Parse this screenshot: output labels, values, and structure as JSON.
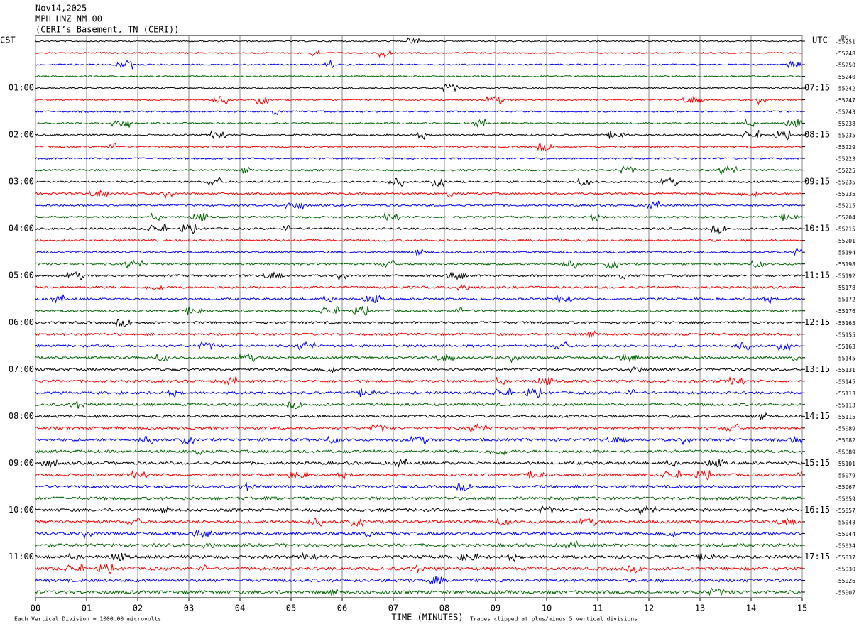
{
  "chart_data": {
    "type": "helicorder",
    "title_lines": [
      "Nov14,2025",
      "MPH HNZ NM 00",
      "(CERI’s Basement, TN (CERI))"
    ],
    "left_header": "CST",
    "right_header": "UTC",
    "dc_header": "DC",
    "colors": [
      "#000000",
      "#ff0000",
      "#0000ff",
      "#006400"
    ],
    "dc_offsets": [
      -55251,
      -55248,
      -55250,
      -55240,
      -55242,
      -55247,
      -55243,
      -55238,
      -55235,
      -55229,
      -55223,
      -55225,
      -55235,
      -55235,
      -55215,
      -55204,
      -55215,
      -55201,
      -55194,
      -55198,
      -55192,
      -55178,
      -55172,
      -55176,
      -55165,
      -55155,
      -55163,
      -55145,
      -55131,
      -55145,
      -55113,
      -55113,
      -55115,
      -55089,
      -55082,
      -55089,
      -55101,
      -55079,
      -55067,
      -55059,
      -55057,
      -55048,
      -55044,
      -55034,
      -55037,
      -55030,
      -55026,
      -55007
    ],
    "cst_labels": [
      "01:00",
      "02:00",
      "03:00",
      "04:00",
      "05:00",
      "06:00",
      "07:00",
      "08:00",
      "09:00",
      "10:00",
      "11:00"
    ],
    "utc_labels": [
      "07:15",
      "08:15",
      "09:15",
      "10:15",
      "11:15",
      "12:15",
      "13:15",
      "14:15",
      "15:15",
      "16:15",
      "17:15"
    ],
    "xlabel": "TIME (MINUTES)",
    "xlim": [
      0,
      15
    ],
    "xticks": [
      {
        "value": 0,
        "label": "00"
      },
      {
        "value": 1,
        "label": "01"
      },
      {
        "value": 2,
        "label": "02"
      },
      {
        "value": 3,
        "label": "03"
      },
      {
        "value": 4,
        "label": "04"
      },
      {
        "value": 5,
        "label": "05"
      },
      {
        "value": 6,
        "label": "06"
      },
      {
        "value": 7,
        "label": "07"
      },
      {
        "value": 8,
        "label": "08"
      },
      {
        "value": 9,
        "label": "09"
      },
      10,
      11,
      12,
      13,
      14,
      15
    ],
    "grid": true,
    "footer_left": "Each Vertical Division = 1000.00 microvolts",
    "footer_right": "Traces clipped at plus/minus 5 vertical divisions"
  }
}
